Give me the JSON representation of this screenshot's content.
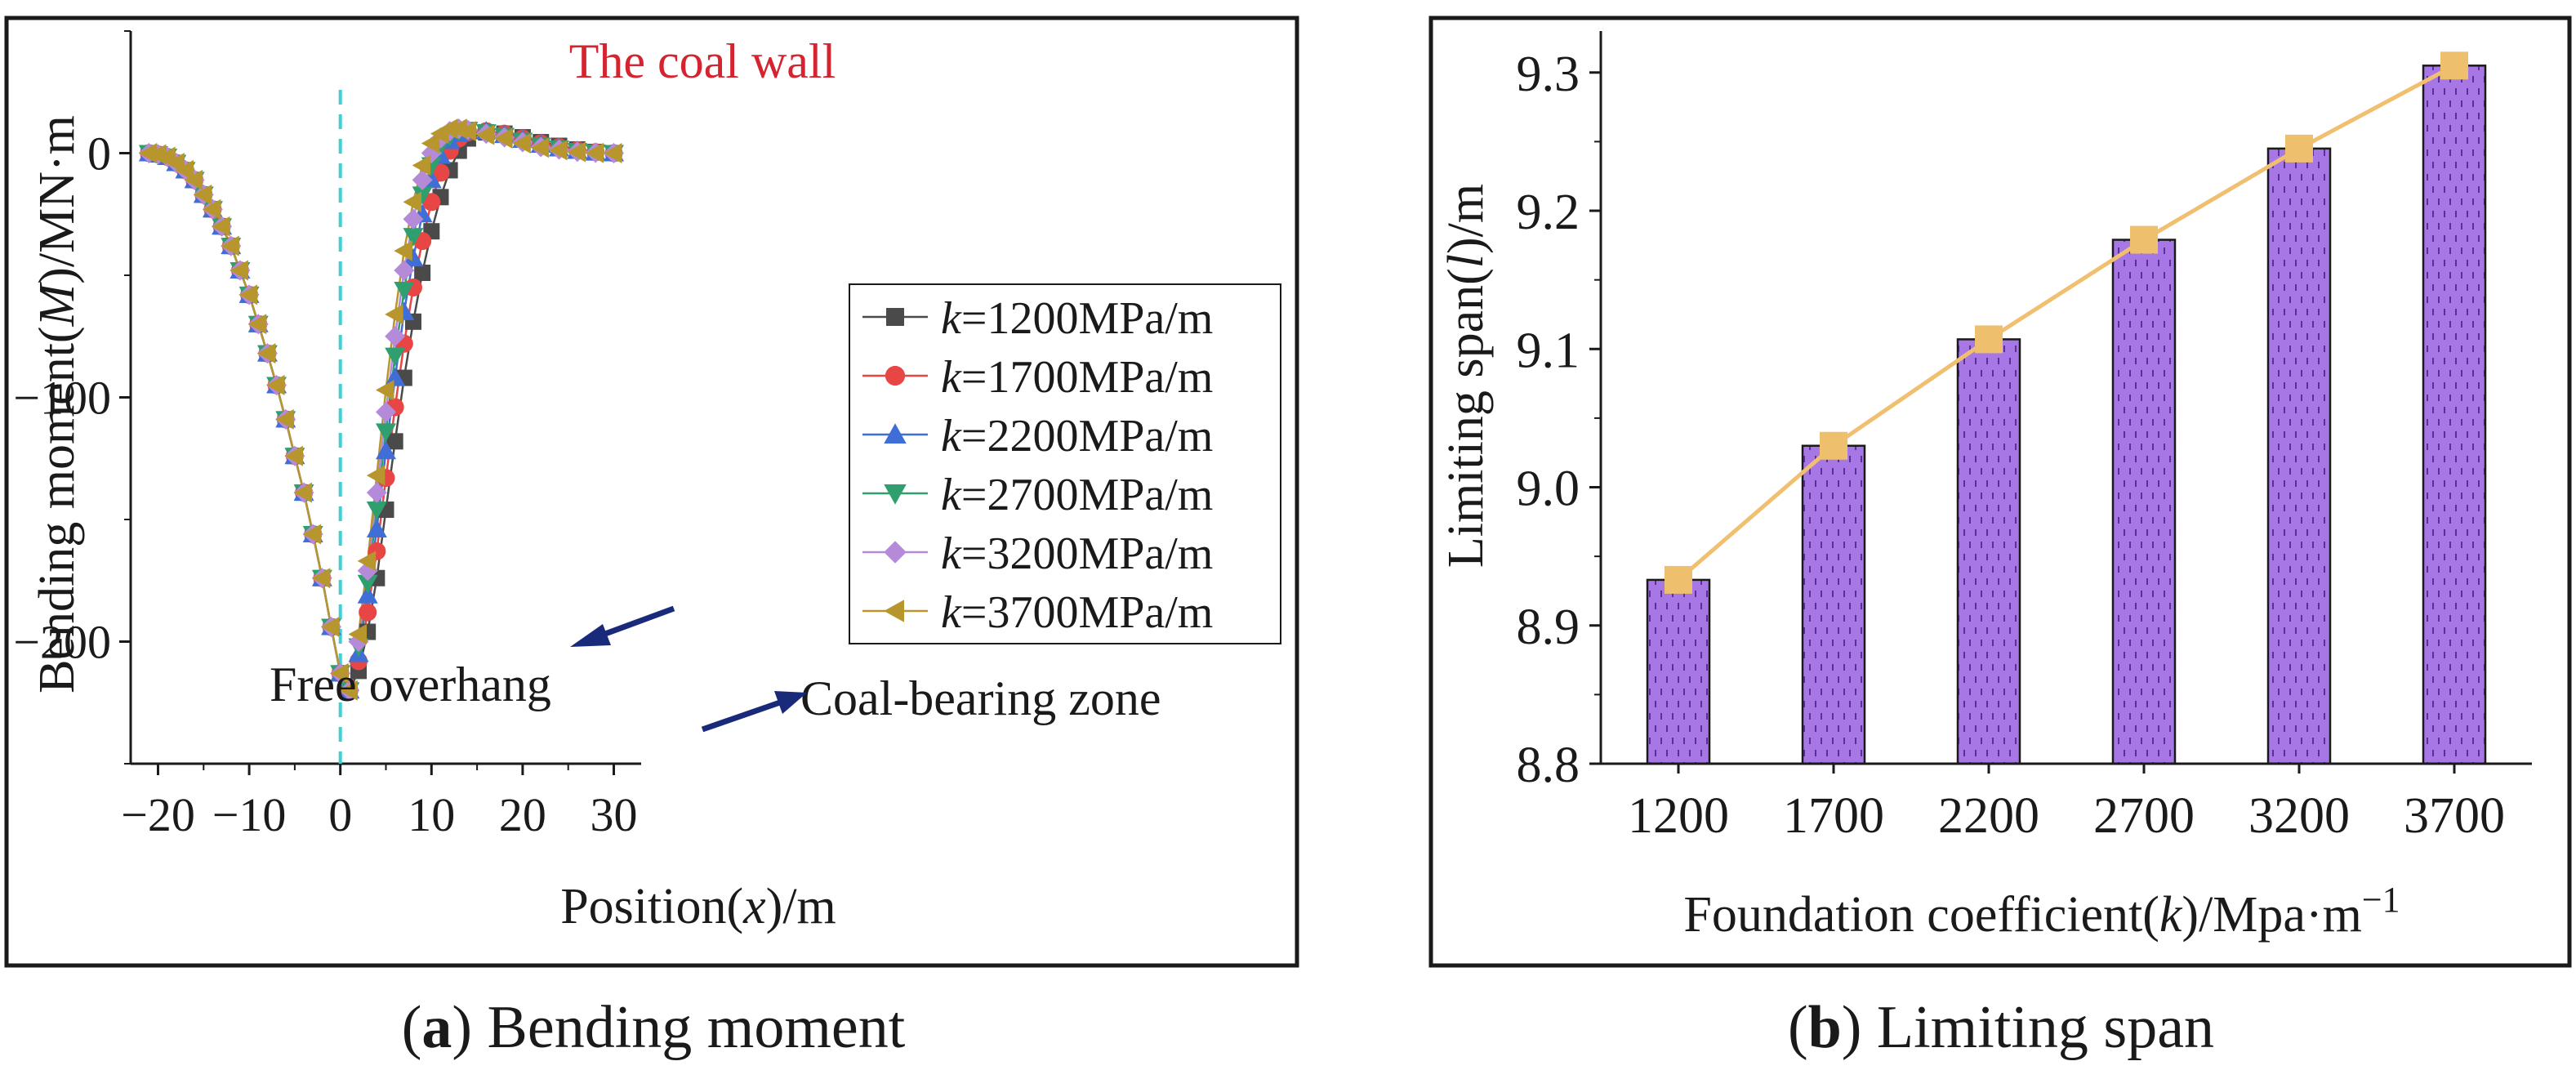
{
  "chart_data": [
    {
      "type": "line",
      "panel_id": "a",
      "xlabel": "Position(x)/m",
      "ylabel": "Bending moment(M)/MN·m",
      "xlim": [
        -23,
        33
      ],
      "ylim": [
        -250,
        50
      ],
      "xticks": [
        -20,
        -10,
        0,
        10,
        20,
        30
      ],
      "xtick_labels": [
        "−20",
        "−10",
        "0",
        "10",
        "20",
        "30"
      ],
      "yticks": [
        0,
        -100,
        -200
      ],
      "ytick_labels": [
        "0",
        "−100",
        "−200"
      ],
      "annotations": {
        "coal_wall": "The coal wall",
        "free_overhang": "Free overhang",
        "coal_bearing": "Coal-bearing zone"
      },
      "coal_wall_x": 0,
      "common_left": {
        "x": [
          -21,
          -20,
          -19,
          -18,
          -17,
          -16,
          -15,
          -14,
          -13,
          -12,
          -11,
          -10,
          -9,
          -8,
          -7,
          -6,
          -5,
          -4,
          -3,
          -2,
          -1,
          0
        ],
        "y": [
          0,
          -0.5,
          -1.5,
          -4,
          -7,
          -11,
          -17,
          -23,
          -30,
          -38,
          -48,
          -58,
          -70,
          -82,
          -95,
          -109,
          -124,
          -139,
          -156,
          -174,
          -194,
          -213
        ]
      },
      "series": [
        {
          "name": "1200MPa/m",
          "legend_prefix": "k",
          "legend_rest": "=1200MPa/m",
          "color": "#4a4a4a",
          "marker": "square",
          "x": [
            1,
            2,
            3,
            4,
            5,
            6,
            7,
            8,
            9,
            10,
            11,
            12,
            13,
            14,
            16,
            18,
            20,
            22,
            24,
            26,
            28,
            30
          ],
          "y": [
            -220,
            -212,
            -196,
            -174,
            -146,
            -118,
            -92,
            -69,
            -49,
            -32,
            -18,
            -7,
            1,
            6,
            8.5,
            8,
            6.5,
            4.5,
            3,
            1.5,
            0.5,
            0
          ]
        },
        {
          "name": "1700MPa/m",
          "legend_prefix": "k",
          "legend_rest": "=1700MPa/m",
          "color": "#e84545",
          "marker": "circle",
          "x": [
            1,
            2,
            3,
            4,
            5,
            6,
            7,
            8,
            9,
            10,
            11,
            12,
            13,
            14,
            16,
            18,
            20,
            22,
            24,
            26,
            28,
            30
          ],
          "y": [
            -220,
            -208,
            -188,
            -163,
            -133,
            -104,
            -78,
            -55,
            -36,
            -20,
            -8,
            1,
            6,
            8.5,
            9,
            8,
            6,
            4,
            2.5,
            1.2,
            0.4,
            0
          ]
        },
        {
          "name": "2200MPa/m",
          "legend_prefix": "k",
          "legend_rest": "=2200MPa/m",
          "color": "#3f6fd6",
          "marker": "triangle-up",
          "x": [
            1,
            2,
            3,
            4,
            5,
            6,
            7,
            8,
            9,
            10,
            11,
            12,
            13,
            14,
            16,
            18,
            20,
            22,
            24,
            26,
            28,
            30
          ],
          "y": [
            -220,
            -205,
            -181,
            -154,
            -122,
            -92,
            -65,
            -43,
            -25,
            -11,
            -1,
            5,
            8,
            9,
            9,
            7.5,
            5.5,
            3.5,
            2,
            1,
            0.3,
            0
          ]
        },
        {
          "name": "2700MPa/m",
          "legend_prefix": "k",
          "legend_rest": "=2700MPa/m",
          "color": "#2f9f6f",
          "marker": "triangle-down",
          "x": [
            1,
            2,
            3,
            4,
            5,
            6,
            7,
            8,
            9,
            10,
            11,
            12,
            13,
            14,
            16,
            18,
            20,
            22,
            24,
            26,
            28,
            30
          ],
          "y": [
            -220,
            -202,
            -176,
            -146,
            -114,
            -83,
            -56,
            -34,
            -17,
            -5,
            3,
            7,
            9,
            9.5,
            8.5,
            7,
            5,
            3,
            1.8,
            0.8,
            0.2,
            0
          ]
        },
        {
          "name": "3200MPa/m",
          "legend_prefix": "k",
          "legend_rest": "=3200MPa/m",
          "color": "#b58ad8",
          "marker": "diamond",
          "x": [
            1,
            2,
            3,
            4,
            5,
            6,
            7,
            8,
            9,
            10,
            11,
            12,
            13,
            14,
            16,
            18,
            20,
            22,
            24,
            26,
            28,
            30
          ],
          "y": [
            -220,
            -200,
            -171,
            -139,
            -106,
            -75,
            -48,
            -27,
            -11,
            0,
            6,
            9,
            10,
            9.5,
            8,
            6.5,
            4.5,
            2.5,
            1.5,
            0.6,
            0.2,
            0
          ]
        },
        {
          "name": "3700MPa/m",
          "legend_prefix": "k",
          "legend_rest": "=3700MPa/m",
          "color": "#b8962e",
          "marker": "triangle-left",
          "x": [
            1,
            2,
            3,
            4,
            5,
            6,
            7,
            8,
            9,
            10,
            11,
            12,
            13,
            14,
            16,
            18,
            20,
            22,
            24,
            26,
            28,
            30
          ],
          "y": [
            -220,
            -197,
            -167,
            -132,
            -97,
            -66,
            -40,
            -20,
            -5,
            4,
            8,
            10,
            10,
            9,
            7.5,
            6,
            4,
            2.2,
            1.2,
            0.5,
            0.1,
            0
          ]
        }
      ]
    },
    {
      "type": "bar",
      "panel_id": "b",
      "xlabel_main": "Foundation coefficient(k)/Mpa·m",
      "xlabel_sup": "−1",
      "ylabel": "Limiting span(l)/m",
      "categories": [
        "1200",
        "1700",
        "2200",
        "2700",
        "3200",
        "3700"
      ],
      "values": [
        8.933,
        9.03,
        9.107,
        9.179,
        9.245,
        9.305
      ],
      "ylim": [
        8.8,
        9.33
      ],
      "yticks": [
        8.8,
        8.9,
        9.0,
        9.1,
        9.2,
        9.3
      ],
      "ytick_labels": [
        "8.8",
        "8.9",
        "9.0",
        "9.1",
        "9.2",
        "9.3"
      ],
      "bar_color": "#a877e6",
      "line_color": "#f0c070",
      "marker_color": "#eebf6d",
      "overlay_line": true
    }
  ],
  "captions": {
    "a_letter": "a",
    "a_text": "Bending moment",
    "b_letter": "b",
    "b_text": "Limiting span"
  }
}
